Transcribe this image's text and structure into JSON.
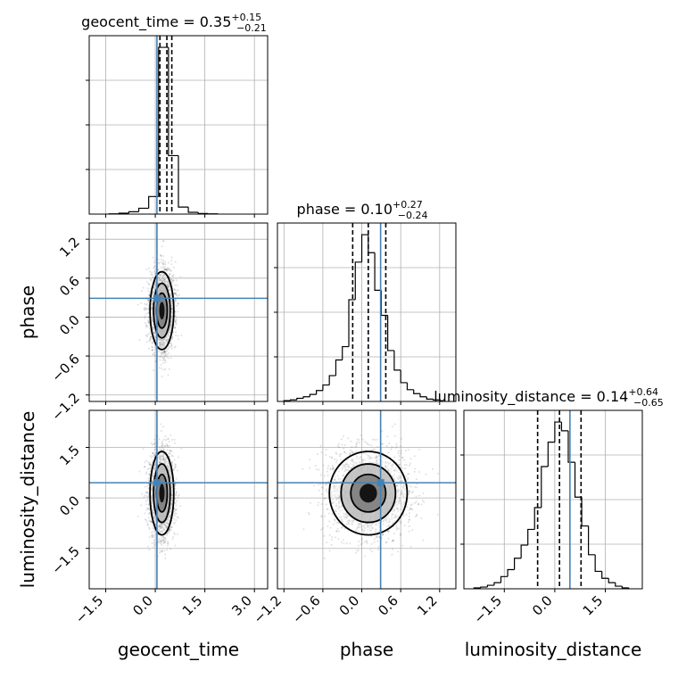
{
  "chart_data": {
    "type": "corner",
    "parameters": [
      "geocent_time",
      "phase",
      "luminosity_distance"
    ],
    "axis_labels": {
      "x": [
        "geocent_time",
        "phase",
        "luminosity_distance"
      ],
      "y": [
        "phase",
        "luminosity_distance"
      ]
    },
    "truths": [
      0.05,
      0.29,
      0.45
    ],
    "titles": [
      {
        "param": "geocent_time",
        "text": "geocent_time = 0.35",
        "upper": "+0.15",
        "lower": "−0.21",
        "median": 0.35,
        "q_low": 0.14,
        "q_high": 0.5
      },
      {
        "param": "phase",
        "text": "phase = 0.10",
        "upper": "+0.27",
        "lower": "−0.24",
        "median": 0.1,
        "q_low": -0.14,
        "q_high": 0.37
      },
      {
        "param": "luminosity_distance",
        "text": "luminosity_distance = 0.14",
        "upper": "+0.64",
        "lower": "−0.65",
        "median": 0.14,
        "q_low": -0.51,
        "q_high": 0.78
      }
    ],
    "ranges": {
      "geocent_time": [
        -2.0,
        3.4
      ],
      "phase": [
        -1.3,
        1.45
      ],
      "luminosity_distance": [
        -2.7,
        2.6
      ]
    },
    "ticks": {
      "geocent_time": [
        {
          "v": -1.5,
          "label": "−1.5"
        },
        {
          "v": 0.0,
          "label": "0.0"
        },
        {
          "v": 1.5,
          "label": "1.5"
        },
        {
          "v": 3.0,
          "label": "3.0"
        }
      ],
      "phase": [
        {
          "v": -1.2,
          "label": "−1.2"
        },
        {
          "v": -0.6,
          "label": "−0.6"
        },
        {
          "v": 0.0,
          "label": "0.0"
        },
        {
          "v": 0.6,
          "label": "0.6"
        },
        {
          "v": 1.2,
          "label": "1.2"
        }
      ],
      "luminosity_distance": [
        {
          "v": -1.5,
          "label": "−1.5"
        },
        {
          "v": 0.0,
          "label": "0.0"
        },
        {
          "v": 1.5,
          "label": "1.5"
        }
      ]
    },
    "histograms": {
      "geocent_time": {
        "edges": [
          -1.4,
          -1.1,
          -0.8,
          -0.5,
          -0.2,
          0.1,
          0.4,
          0.7,
          1.0,
          1.3,
          1.6,
          1.9
        ],
        "counts": [
          0.005,
          0.015,
          0.04,
          0.1,
          0.3,
          2.85,
          1.0,
          0.12,
          0.03,
          0.01,
          0.004
        ]
      },
      "phase": {
        "edges": [
          -1.2,
          -1.1,
          -1.0,
          -0.9,
          -0.8,
          -0.7,
          -0.6,
          -0.5,
          -0.4,
          -0.3,
          -0.2,
          -0.1,
          0.0,
          0.1,
          0.2,
          0.3,
          0.4,
          0.5,
          0.6,
          0.7,
          0.8,
          0.9,
          1.0,
          1.1,
          1.2
        ],
        "counts": [
          0.01,
          0.02,
          0.04,
          0.06,
          0.09,
          0.14,
          0.21,
          0.33,
          0.53,
          0.7,
          1.3,
          1.78,
          2.13,
          1.9,
          1.42,
          1.1,
          0.65,
          0.4,
          0.24,
          0.15,
          0.1,
          0.06,
          0.03,
          0.02
        ]
      },
      "luminosity_distance": {
        "edges": [
          -2.4,
          -2.2,
          -2.0,
          -1.8,
          -1.6,
          -1.4,
          -1.2,
          -1.0,
          -0.8,
          -0.6,
          -0.4,
          -0.2,
          0.0,
          0.2,
          0.4,
          0.6,
          0.8,
          1.0,
          1.2,
          1.4,
          1.6,
          1.8,
          2.0,
          2.2
        ],
        "counts": [
          0.01,
          0.02,
          0.04,
          0.07,
          0.14,
          0.22,
          0.35,
          0.5,
          0.68,
          0.93,
          1.4,
          1.68,
          1.91,
          1.81,
          1.45,
          1.05,
          0.72,
          0.39,
          0.2,
          0.12,
          0.07,
          0.03,
          0.01
        ]
      }
    },
    "samples": {
      "geocent_time": {
        "center": 0.2,
        "sigma": 0.18
      },
      "phase": {
        "center": 0.1,
        "sigma": 0.3
      },
      "luminosity_distance": {
        "center": 0.14,
        "sigma": 0.62
      }
    },
    "grid": true
  }
}
